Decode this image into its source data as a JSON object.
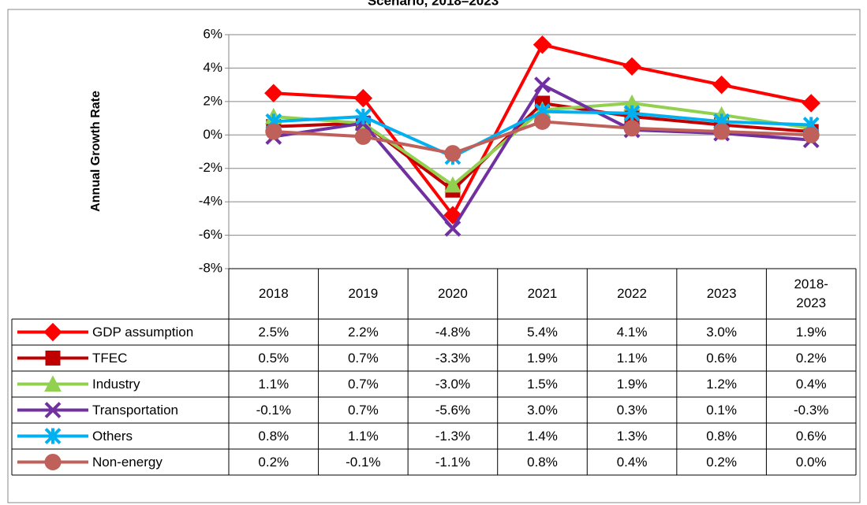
{
  "chart_data": {
    "type": "line",
    "title": "Scenario, 2018–2023",
    "y_label": "Annual Growth Rate",
    "categories": [
      "2018",
      "2019",
      "2020",
      "2021",
      "2022",
      "2023",
      "2018-2023"
    ],
    "ylim": [
      -8,
      6
    ],
    "yticks": [
      {
        "value": -8,
        "label": "-8%"
      },
      {
        "value": -6,
        "label": "-6%"
      },
      {
        "value": -4,
        "label": "-4%"
      },
      {
        "value": -2,
        "label": "-2%"
      },
      {
        "value": 0,
        "label": "0%"
      },
      {
        "value": 2,
        "label": "2%"
      },
      {
        "value": 4,
        "label": "4%"
      },
      {
        "value": 6,
        "label": "6%"
      }
    ],
    "grid": true,
    "series": [
      {
        "name": "GDP assumption",
        "color": "#ff0000",
        "marker": "diamond",
        "values": [
          2.5,
          2.2,
          -4.8,
          5.4,
          4.1,
          3.0,
          1.9
        ],
        "value_labels": [
          "2.5%",
          "2.2%",
          "-4.8%",
          "5.4%",
          "4.1%",
          "3.0%",
          "1.9%"
        ]
      },
      {
        "name": "TFEC",
        "color": "#c00000",
        "marker": "square",
        "values": [
          0.5,
          0.7,
          -3.3,
          1.9,
          1.1,
          0.6,
          0.2
        ],
        "value_labels": [
          "0.5%",
          "0.7%",
          "-3.3%",
          "1.9%",
          "1.1%",
          "0.6%",
          "0.2%"
        ]
      },
      {
        "name": "Industry",
        "color": "#92d050",
        "marker": "triangle",
        "values": [
          1.1,
          0.7,
          -3.0,
          1.5,
          1.9,
          1.2,
          0.4
        ],
        "value_labels": [
          "1.1%",
          "0.7%",
          "-3.0%",
          "1.5%",
          "1.9%",
          "1.2%",
          "0.4%"
        ]
      },
      {
        "name": "Transportation",
        "color": "#7030a0",
        "marker": "x",
        "values": [
          -0.1,
          0.7,
          -5.6,
          3.0,
          0.3,
          0.1,
          -0.3
        ],
        "value_labels": [
          "-0.1%",
          "0.7%",
          "-5.6%",
          "3.0%",
          "0.3%",
          "0.1%",
          "-0.3%"
        ]
      },
      {
        "name": "Others",
        "color": "#00b0f0",
        "marker": "star",
        "values": [
          0.8,
          1.1,
          -1.3,
          1.4,
          1.3,
          0.8,
          0.6
        ],
        "value_labels": [
          "0.8%",
          "1.1%",
          "-1.3%",
          "1.4%",
          "1.3%",
          "0.8%",
          "0.6%"
        ]
      },
      {
        "name": "Non-energy",
        "color": "#c0605a",
        "marker": "circle",
        "values": [
          0.2,
          -0.1,
          -1.1,
          0.8,
          0.4,
          0.2,
          0.0
        ],
        "value_labels": [
          "0.2%",
          "-0.1%",
          "-1.1%",
          "0.8%",
          "0.4%",
          "0.2%",
          "0.0%"
        ]
      }
    ]
  }
}
